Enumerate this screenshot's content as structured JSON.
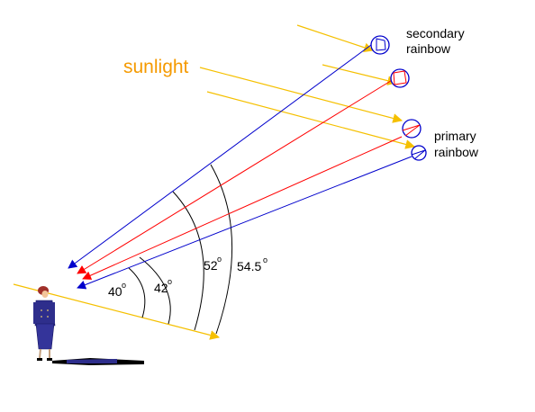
{
  "labels": {
    "sunlight": "sunlight",
    "secondary_line1": "secondary",
    "secondary_line2": "rainbow",
    "primary_line1": "primary",
    "primary_line2": "rainbow"
  },
  "angles": [
    {
      "value": 40,
      "text": "40"
    },
    {
      "value": 42,
      "text": "42"
    },
    {
      "value": 52,
      "text": "52"
    },
    {
      "value": 54.5,
      "text": "54.5"
    }
  ],
  "degree_symbol": "o",
  "colors": {
    "sunlight": "#f5c000",
    "sunlight_label": "#f59a00",
    "red_ray": "#ff0000",
    "blue_ray": "#0000cc",
    "arc": "#000000",
    "drop_outline": "#0000cc"
  },
  "drops": [
    {
      "id": "secondary-blue",
      "color": "blue"
    },
    {
      "id": "secondary-red",
      "color": "red"
    },
    {
      "id": "primary-red",
      "color": "red"
    },
    {
      "id": "primary-blue",
      "color": "blue"
    }
  ]
}
